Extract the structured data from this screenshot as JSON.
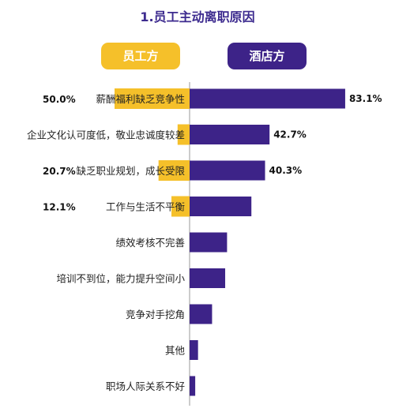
{
  "colors": {
    "employee": "#f5c02a",
    "hotel": "#3d2388",
    "title": "#3d2b8f",
    "axis": "#9a9a9a"
  },
  "chart_data": {
    "type": "bar",
    "title": "1.员工主动离职原因",
    "categories": [
      "薪酬福利缺乏竞争性",
      "企业文化认可度低，敬业忠诚度较差",
      "缺乏职业规划，成长受限",
      "工作与生活不平衡",
      "绩效考核不完善",
      "培训不到位，能力提升空间小",
      "竞争对手挖角",
      "其他",
      "职场人际关系不好"
    ],
    "series": [
      {
        "name": "员工方",
        "values": [
          50.0,
          8.0,
          20.7,
          12.1,
          null,
          null,
          null,
          null,
          null
        ],
        "labels": [
          "50.0%",
          "",
          "20.7%",
          "12.1%",
          "",
          "",
          "",
          "",
          ""
        ]
      },
      {
        "name": "酒店方",
        "values": [
          83.1,
          42.7,
          40.3,
          33.0,
          20.0,
          19.0,
          12.0,
          4.5,
          3.0
        ],
        "labels": [
          "83.1%",
          "42.7%",
          "40.3%",
          "",
          "",
          "",
          "",
          "",
          ""
        ]
      }
    ]
  }
}
